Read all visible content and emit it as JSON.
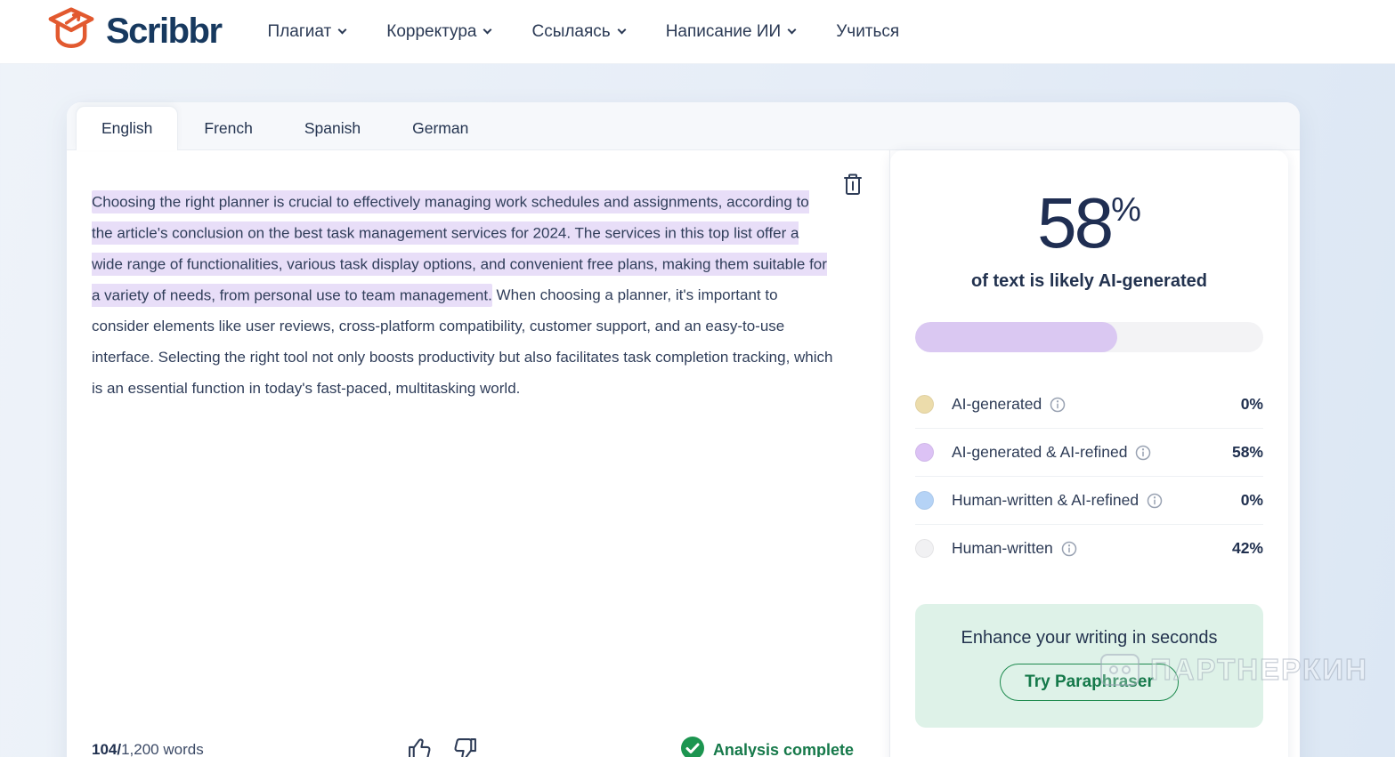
{
  "header": {
    "logo_text": "Scribbr",
    "nav": [
      {
        "label": "Плагиат",
        "has_dropdown": true
      },
      {
        "label": "Корректура",
        "has_dropdown": true
      },
      {
        "label": "Ссылаясь",
        "has_dropdown": true
      },
      {
        "label": "Написание ИИ",
        "has_dropdown": true
      },
      {
        "label": "Учиться",
        "has_dropdown": false
      }
    ]
  },
  "tabs": [
    {
      "label": "English",
      "active": true
    },
    {
      "label": "French",
      "active": false
    },
    {
      "label": "Spanish",
      "active": false
    },
    {
      "label": "German",
      "active": false
    }
  ],
  "editor": {
    "highlighted_text": "Choosing the right planner is crucial to effectively managing work schedules and assignments, according to the article's conclusion on the best task management services for 2024. The services in this top list offer a wide range of functionalities, various task display options, and convenient free plans, making them suitable for a variety of needs, from personal use to team management.",
    "normal_text": " When choosing a planner, it's important to consider elements like user reviews, cross-platform compatibility, customer support, and an easy-to-use interface. Selecting the right tool not only boosts productivity but also facilitates task completion tracking, which is an essential function in today's fast-paced, multitasking world.",
    "word_count_bold": "104/",
    "word_count_rest": "1,200 words",
    "status": "Analysis complete"
  },
  "results": {
    "score": "58",
    "score_unit": "%",
    "score_caption": "of text is likely AI-generated",
    "progress_percent": 58,
    "legend": [
      {
        "label": "AI-generated",
        "value": "0%",
        "color": "#ecdcab"
      },
      {
        "label": "AI-generated & AI-refined",
        "value": "58%",
        "color": "#dcc2f5"
      },
      {
        "label": "Human-written & AI-refined",
        "value": "0%",
        "color": "#b5d3f6"
      },
      {
        "label": "Human-written",
        "value": "42%",
        "color": "#f1f1f3"
      }
    ],
    "promo": {
      "title": "Enhance your writing in seconds",
      "button_label": "Try Paraphraser"
    }
  },
  "watermark_text": "ПАРТНЕРКИН",
  "colors": {
    "accent_purple": "#dac8f2",
    "highlight": "#e8def8",
    "brand_orange": "#e2592f",
    "brand_navy": "#17395f",
    "success_green": "#16794a",
    "promo_bg": "#def2e8"
  }
}
